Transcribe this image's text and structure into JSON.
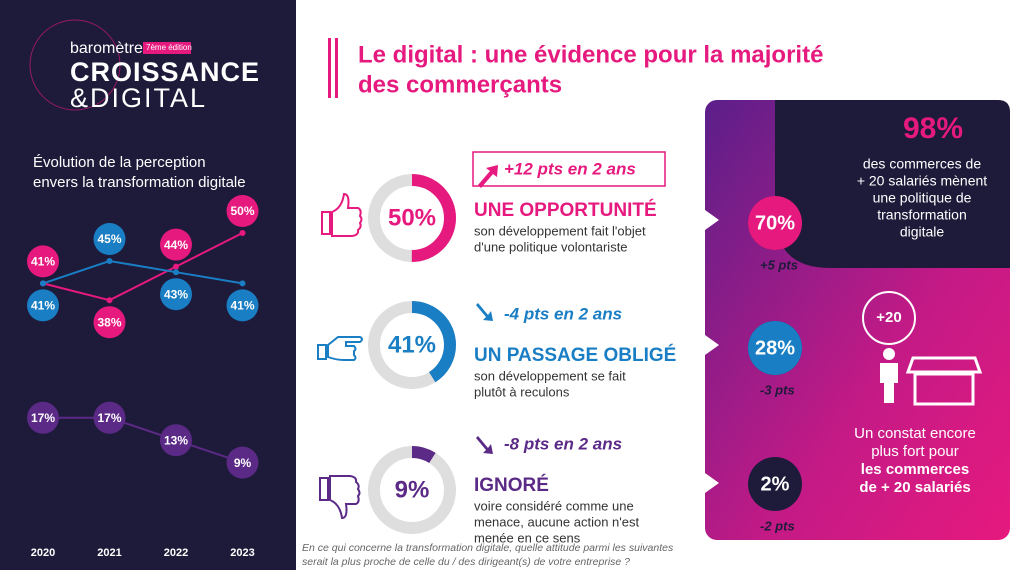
{
  "brand": {
    "line1": "baromètre",
    "edition": "7ème édition",
    "line2": "CROISSANCE",
    "line3": "&DIGITAL"
  },
  "title": [
    "Le digital : une évidence pour la majorité",
    "des commerçants"
  ],
  "chart_data": [
    {
      "type": "line",
      "title": [
        "Évolution de la perception",
        "envers la transformation digitale"
      ],
      "categories": [
        "2020",
        "2021",
        "2022",
        "2023"
      ],
      "ylim": [
        5,
        55
      ],
      "series": [
        {
          "color": "#e6197e",
          "values": [
            41,
            38,
            44,
            50
          ],
          "value_labels": [
            "41%",
            "38%",
            "44%",
            "50%"
          ]
        },
        {
          "color": "#1a7ec4",
          "values": [
            41,
            45,
            43,
            41
          ],
          "value_labels": [
            "41%",
            "45%",
            "43%",
            "41%"
          ]
        },
        {
          "color": "#5b2a86",
          "values": [
            17,
            17,
            13,
            9
          ],
          "value_labels": [
            "17%",
            "17%",
            "13%",
            "9%"
          ]
        }
      ]
    },
    {
      "type": "donut",
      "values": [
        50,
        41,
        9
      ],
      "value_labels": [
        "50%",
        "41%",
        "9%"
      ],
      "colors": [
        "#e6197e",
        "#1a7ec4",
        "#5b2a86"
      ]
    }
  ],
  "rows": [
    {
      "change": "+12 pts en 2 ans",
      "label": "UNE OPPORTUNITÉ",
      "description": [
        "son développement fait l'objet",
        "d'une politique volontariste"
      ],
      "big_value": "70%",
      "big_change": "+5 pts"
    },
    {
      "change": "-4 pts en 2 ans",
      "label": "UN PASSAGE OBLIGÉ",
      "description": [
        "son développement se fait",
        "plutôt à reculons"
      ],
      "big_value": "28%",
      "big_change": "-3 pts"
    },
    {
      "change": "-8 pts en 2 ans",
      "label": "IGNORÉ",
      "description": [
        "voire considéré comme une",
        "menace, aucune action n'est",
        "menée en ce sens"
      ],
      "big_value": "2%",
      "big_change": "-2 pts"
    }
  ],
  "panel": {
    "headline": "98%",
    "headline_text": [
      "des commerces de",
      "+ 20 salariés mènent",
      "une politique de",
      "transformation",
      "digitale"
    ],
    "badge": "+20",
    "conclusion": [
      "Un constat encore",
      "plus fort pour"
    ],
    "conclusion_bold": [
      "les commerces",
      "de + 20 salariés"
    ]
  },
  "footnote": [
    "En ce qui concerne la transformation digitale, quelle attitude parmi les suivantes",
    "serait la plus proche de celle du / des dirigeant(s) de votre entreprise ?"
  ]
}
